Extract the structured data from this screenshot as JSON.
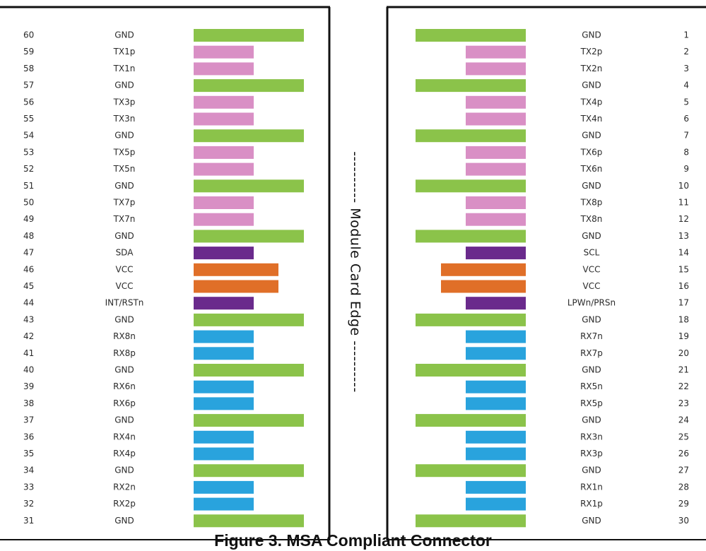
{
  "edge_label": "---------- Module Card Edge ----------",
  "caption": "Figure 3. MSA Compliant Connector",
  "colors": {
    "GND": "#8bc34a",
    "TX": "#d98fc5",
    "RX": "#29a3dd",
    "CTRL": "#6a2a8c",
    "VCC": "#e06f28",
    "frame": "#111111"
  },
  "bar_lengths": {
    "GND": "long",
    "TX": "short",
    "RX": "short",
    "CTRL": "short",
    "VCC": "medium"
  },
  "left_pins": [
    {
      "num": "60",
      "label": "GND",
      "type": "GND"
    },
    {
      "num": "59",
      "label": "TX1p",
      "type": "TX"
    },
    {
      "num": "58",
      "label": "TX1n",
      "type": "TX"
    },
    {
      "num": "57",
      "label": "GND",
      "type": "GND"
    },
    {
      "num": "56",
      "label": "TX3p",
      "type": "TX"
    },
    {
      "num": "55",
      "label": "TX3n",
      "type": "TX"
    },
    {
      "num": "54",
      "label": "GND",
      "type": "GND"
    },
    {
      "num": "53",
      "label": "TX5p",
      "type": "TX"
    },
    {
      "num": "52",
      "label": "TX5n",
      "type": "TX"
    },
    {
      "num": "51",
      "label": "GND",
      "type": "GND"
    },
    {
      "num": "50",
      "label": "TX7p",
      "type": "TX"
    },
    {
      "num": "49",
      "label": "TX7n",
      "type": "TX"
    },
    {
      "num": "48",
      "label": "GND",
      "type": "GND"
    },
    {
      "num": "47",
      "label": "SDA",
      "type": "CTRL"
    },
    {
      "num": "46",
      "label": "VCC",
      "type": "VCC"
    },
    {
      "num": "45",
      "label": "VCC",
      "type": "VCC"
    },
    {
      "num": "44",
      "label": "INT/RSTn",
      "type": "CTRL"
    },
    {
      "num": "43",
      "label": "GND",
      "type": "GND"
    },
    {
      "num": "42",
      "label": "RX8n",
      "type": "RX"
    },
    {
      "num": "41",
      "label": "RX8p",
      "type": "RX"
    },
    {
      "num": "40",
      "label": "GND",
      "type": "GND"
    },
    {
      "num": "39",
      "label": "RX6n",
      "type": "RX"
    },
    {
      "num": "38",
      "label": "RX6p",
      "type": "RX"
    },
    {
      "num": "37",
      "label": "GND",
      "type": "GND"
    },
    {
      "num": "36",
      "label": "RX4n",
      "type": "RX"
    },
    {
      "num": "35",
      "label": "RX4p",
      "type": "RX"
    },
    {
      "num": "34",
      "label": "GND",
      "type": "GND"
    },
    {
      "num": "33",
      "label": "RX2n",
      "type": "RX"
    },
    {
      "num": "32",
      "label": "RX2p",
      "type": "RX"
    },
    {
      "num": "31",
      "label": "GND",
      "type": "GND"
    }
  ],
  "right_pins": [
    {
      "num": "1",
      "label": "GND",
      "type": "GND"
    },
    {
      "num": "2",
      "label": "TX2p",
      "type": "TX"
    },
    {
      "num": "3",
      "label": "TX2n",
      "type": "TX"
    },
    {
      "num": "4",
      "label": "GND",
      "type": "GND"
    },
    {
      "num": "5",
      "label": "TX4p",
      "type": "TX"
    },
    {
      "num": "6",
      "label": "TX4n",
      "type": "TX"
    },
    {
      "num": "7",
      "label": "GND",
      "type": "GND"
    },
    {
      "num": "8",
      "label": "TX6p",
      "type": "TX"
    },
    {
      "num": "9",
      "label": "TX6n",
      "type": "TX"
    },
    {
      "num": "10",
      "label": "GND",
      "type": "GND"
    },
    {
      "num": "11",
      "label": "TX8p",
      "type": "TX"
    },
    {
      "num": "12",
      "label": "TX8n",
      "type": "TX"
    },
    {
      "num": "13",
      "label": "GND",
      "type": "GND"
    },
    {
      "num": "14",
      "label": "SCL",
      "type": "CTRL"
    },
    {
      "num": "15",
      "label": "VCC",
      "type": "VCC"
    },
    {
      "num": "16",
      "label": "VCC",
      "type": "VCC"
    },
    {
      "num": "17",
      "label": "LPWn/PRSn",
      "type": "CTRL"
    },
    {
      "num": "18",
      "label": "GND",
      "type": "GND"
    },
    {
      "num": "19",
      "label": "RX7n",
      "type": "RX"
    },
    {
      "num": "20",
      "label": "RX7p",
      "type": "RX"
    },
    {
      "num": "21",
      "label": "GND",
      "type": "GND"
    },
    {
      "num": "22",
      "label": "RX5n",
      "type": "RX"
    },
    {
      "num": "23",
      "label": "RX5p",
      "type": "RX"
    },
    {
      "num": "24",
      "label": "GND",
      "type": "GND"
    },
    {
      "num": "25",
      "label": "RX3n",
      "type": "RX"
    },
    {
      "num": "26",
      "label": "RX3p",
      "type": "RX"
    },
    {
      "num": "27",
      "label": "GND",
      "type": "GND"
    },
    {
      "num": "28",
      "label": "RX1n",
      "type": "RX"
    },
    {
      "num": "29",
      "label": "RX1p",
      "type": "RX"
    },
    {
      "num": "30",
      "label": "GND",
      "type": "GND"
    }
  ]
}
